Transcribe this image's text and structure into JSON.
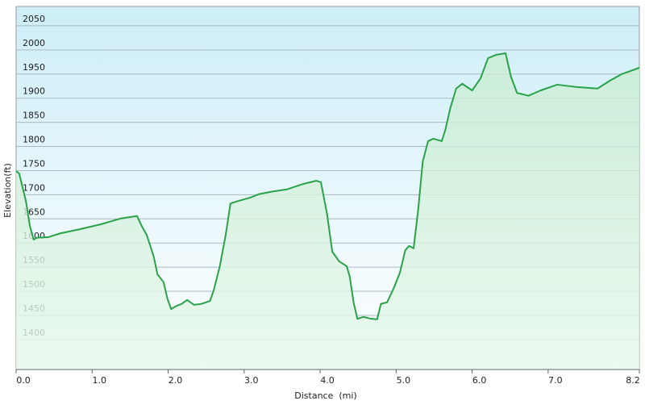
{
  "chart_data": {
    "type": "area",
    "x_label": "Distance  (mi)",
    "y_label": "Elevation(ft)",
    "x": [
      0,
      0.04,
      0.13,
      0.18,
      0.23,
      0.27,
      0.42,
      0.58,
      0.85,
      1.12,
      1.38,
      1.59,
      1.65,
      1.72,
      1.81,
      1.86,
      1.94,
      1.99,
      2.04,
      2.1,
      2.18,
      2.25,
      2.34,
      2.44,
      2.55,
      2.6,
      2.68,
      2.76,
      2.82,
      2.92,
      3.08,
      3.19,
      3.35,
      3.56,
      3.77,
      3.95,
      4.01,
      4.09,
      4.16,
      4.25,
      4.35,
      4.39,
      4.44,
      4.49,
      4.57,
      4.67,
      4.75,
      4.8,
      4.88,
      4.97,
      5.05,
      5.12,
      5.17,
      5.23,
      5.29,
      5.35,
      5.42,
      5.49,
      5.6,
      5.65,
      5.71,
      5.79,
      5.87,
      6.0,
      6.11,
      6.21,
      6.32,
      6.44,
      6.51,
      6.59,
      6.74,
      6.9,
      7.12,
      7.38,
      7.65,
      7.81,
      7.97,
      8.2
    ],
    "values": [
      1749,
      1744,
      1686,
      1636,
      1607,
      1611,
      1612,
      1620,
      1629,
      1639,
      1651,
      1656,
      1636,
      1616,
      1572,
      1535,
      1519,
      1485,
      1463,
      1469,
      1474,
      1482,
      1472,
      1474,
      1480,
      1502,
      1552,
      1619,
      1682,
      1687,
      1694,
      1701,
      1706,
      1711,
      1722,
      1729,
      1726,
      1661,
      1582,
      1562,
      1552,
      1530,
      1477,
      1443,
      1447,
      1443,
      1442,
      1474,
      1477,
      1507,
      1539,
      1585,
      1594,
      1589,
      1669,
      1769,
      1811,
      1816,
      1811,
      1836,
      1878,
      1920,
      1930,
      1916,
      1941,
      1983,
      1990,
      1993,
      1945,
      1911,
      1905,
      1916,
      1928,
      1923,
      1920,
      1936,
      1950,
      1963
    ],
    "color": "#2aa24a",
    "xlim": [
      0,
      8.2
    ],
    "ylim": [
      1338,
      2090
    ],
    "xticks": [
      {
        "value": 0,
        "label": "0.0"
      },
      {
        "value": 1,
        "label": "1.0"
      },
      {
        "value": 2,
        "label": "2.0"
      },
      {
        "value": 3,
        "label": "3.0"
      },
      {
        "value": 4,
        "label": "4.0"
      },
      {
        "value": 5,
        "label": "5.0"
      },
      {
        "value": 6,
        "label": "6.0"
      },
      {
        "value": 7,
        "label": "7.0"
      },
      8.2
    ],
    "yticks": [
      1400,
      1450,
      1500,
      1550,
      1600,
      1650,
      1700,
      1750,
      1800,
      1850,
      1900,
      1950,
      2000,
      2050
    ],
    "grid": true
  }
}
